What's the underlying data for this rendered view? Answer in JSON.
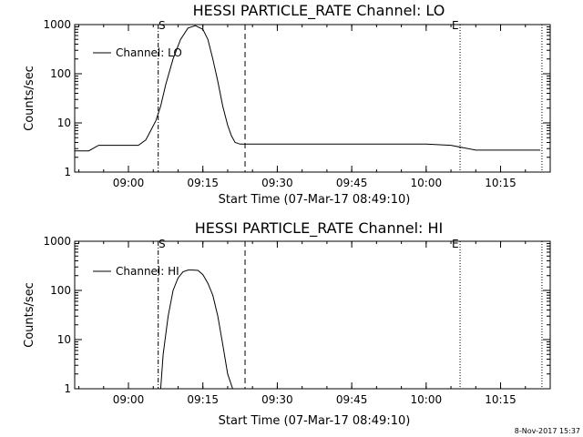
{
  "footer_stamp": "8-Nov-2017 15:37",
  "chart_data": [
    {
      "type": "line",
      "title": "HESSI PARTICLE_RATE Channel: LO",
      "xlabel": "Start Time (07-Mar-17 08:49:10)",
      "ylabel": "Counts/sec",
      "yscale": "log",
      "ylim": [
        1,
        1000
      ],
      "xlim": [
        "08:49:10",
        "10:25:00"
      ],
      "x_ticks": [
        "09:00",
        "09:15",
        "09:30",
        "09:45",
        "10:00",
        "10:15"
      ],
      "y_ticks": [
        "1",
        "10",
        "100",
        "1000"
      ],
      "legend": {
        "label": "Channel: LO",
        "placement": "top-left"
      },
      "markers": [
        {
          "label": "S",
          "time": "09:06:00",
          "style": "dash-dot"
        },
        {
          "label": "",
          "time": "09:23:30",
          "style": "dashed"
        },
        {
          "label": "E",
          "time": "10:06:50",
          "style": "dotted"
        },
        {
          "label": "",
          "time": "10:23:20",
          "style": "dotted"
        }
      ],
      "series": [
        {
          "name": "Channel: LO",
          "x": [
            "08:49:10",
            "08:52:00",
            "08:54:00",
            "08:56:00",
            "08:58:00",
            "09:00:00",
            "09:02:00",
            "09:03:30",
            "09:04:30",
            "09:05:30",
            "09:06:30",
            "09:07:30",
            "09:09:00",
            "09:10:30",
            "09:12:00",
            "09:13:30",
            "09:15:00",
            "09:16:00",
            "09:17:00",
            "09:18:00",
            "09:19:00",
            "09:20:00",
            "09:20:45",
            "09:21:30",
            "09:22:30",
            "09:30:00",
            "09:40:00",
            "09:50:00",
            "10:00:00",
            "10:05:00",
            "10:10:00",
            "10:15:00",
            "10:20:00",
            "10:23:00"
          ],
          "y": [
            2.7,
            2.7,
            3.5,
            3.5,
            3.5,
            3.5,
            3.5,
            4.5,
            7,
            11,
            22,
            60,
            200,
            500,
            850,
            950,
            800,
            500,
            200,
            70,
            22,
            9,
            5.5,
            4,
            3.7,
            3.7,
            3.7,
            3.7,
            3.7,
            3.5,
            2.8,
            2.8,
            2.8,
            2.8
          ]
        }
      ]
    },
    {
      "type": "line",
      "title": "HESSI PARTICLE_RATE Channel: HI",
      "xlabel": "Start Time (07-Mar-17 08:49:10)",
      "ylabel": "Counts/sec",
      "yscale": "log",
      "ylim": [
        1,
        1000
      ],
      "xlim": [
        "08:49:10",
        "10:25:00"
      ],
      "x_ticks": [
        "09:00",
        "09:15",
        "09:30",
        "09:45",
        "10:00",
        "10:15"
      ],
      "y_ticks": [
        "1",
        "10",
        "100",
        "1000"
      ],
      "legend": {
        "label": "Channel: HI",
        "placement": "top-left"
      },
      "markers": [
        {
          "label": "S",
          "time": "09:06:00",
          "style": "dash-dot"
        },
        {
          "label": "",
          "time": "09:23:30",
          "style": "dashed"
        },
        {
          "label": "E",
          "time": "10:06:50",
          "style": "dotted"
        },
        {
          "label": "",
          "time": "10:23:20",
          "style": "dotted"
        }
      ],
      "series": [
        {
          "name": "Channel: HI",
          "x": [
            "09:06:30",
            "09:07:00",
            "09:08:00",
            "09:09:00",
            "09:10:00",
            "09:11:00",
            "09:12:00",
            "09:13:00",
            "09:14:00",
            "09:15:00",
            "09:16:00",
            "09:17:00",
            "09:18:00",
            "09:19:00",
            "09:20:00",
            "09:21:00"
          ],
          "y": [
            1,
            5,
            30,
            100,
            180,
            240,
            260,
            260,
            255,
            210,
            140,
            80,
            30,
            8,
            2,
            1
          ]
        }
      ]
    }
  ]
}
